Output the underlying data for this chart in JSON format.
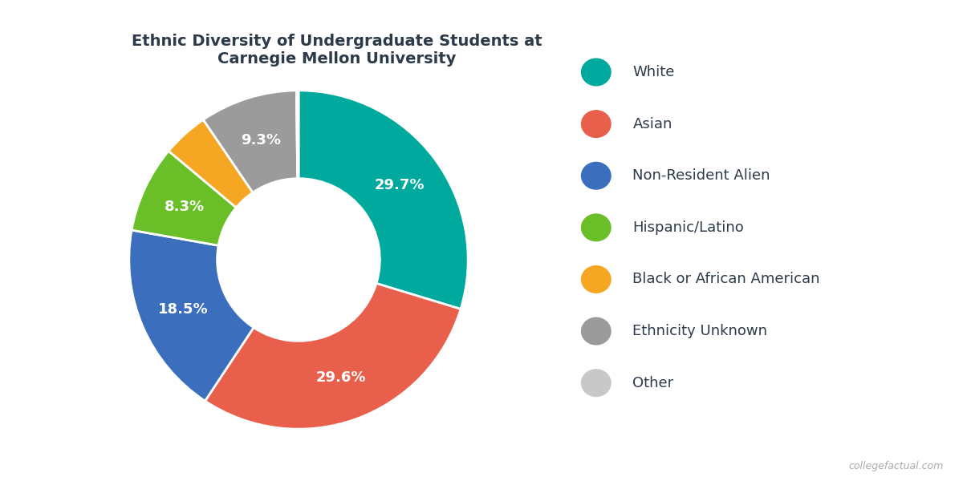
{
  "title": "Ethnic Diversity of Undergraduate Students at\nCarnegie Mellon University",
  "labels": [
    "White",
    "Asian",
    "Non-Resident Alien",
    "Hispanic/Latino",
    "Black or African American",
    "Ethnicity Unknown",
    "Other"
  ],
  "values": [
    29.7,
    29.6,
    18.5,
    8.3,
    4.4,
    9.3,
    0.2
  ],
  "colors": [
    "#00A99D",
    "#E8604C",
    "#3B6FBD",
    "#6ABF29",
    "#F5A623",
    "#9B9B9B",
    "#C8C8C8"
  ],
  "pct_labels": [
    "29.7%",
    "29.6%",
    "18.5%",
    "8.3%",
    "",
    "9.3%",
    ""
  ],
  "title_color": "#2D3A4A",
  "legend_text_color": "#2D3A4A",
  "background_color": "#FFFFFF",
  "title_fontsize": 14,
  "legend_fontsize": 13,
  "label_fontsize": 13,
  "watermark": "collegefactual.com"
}
